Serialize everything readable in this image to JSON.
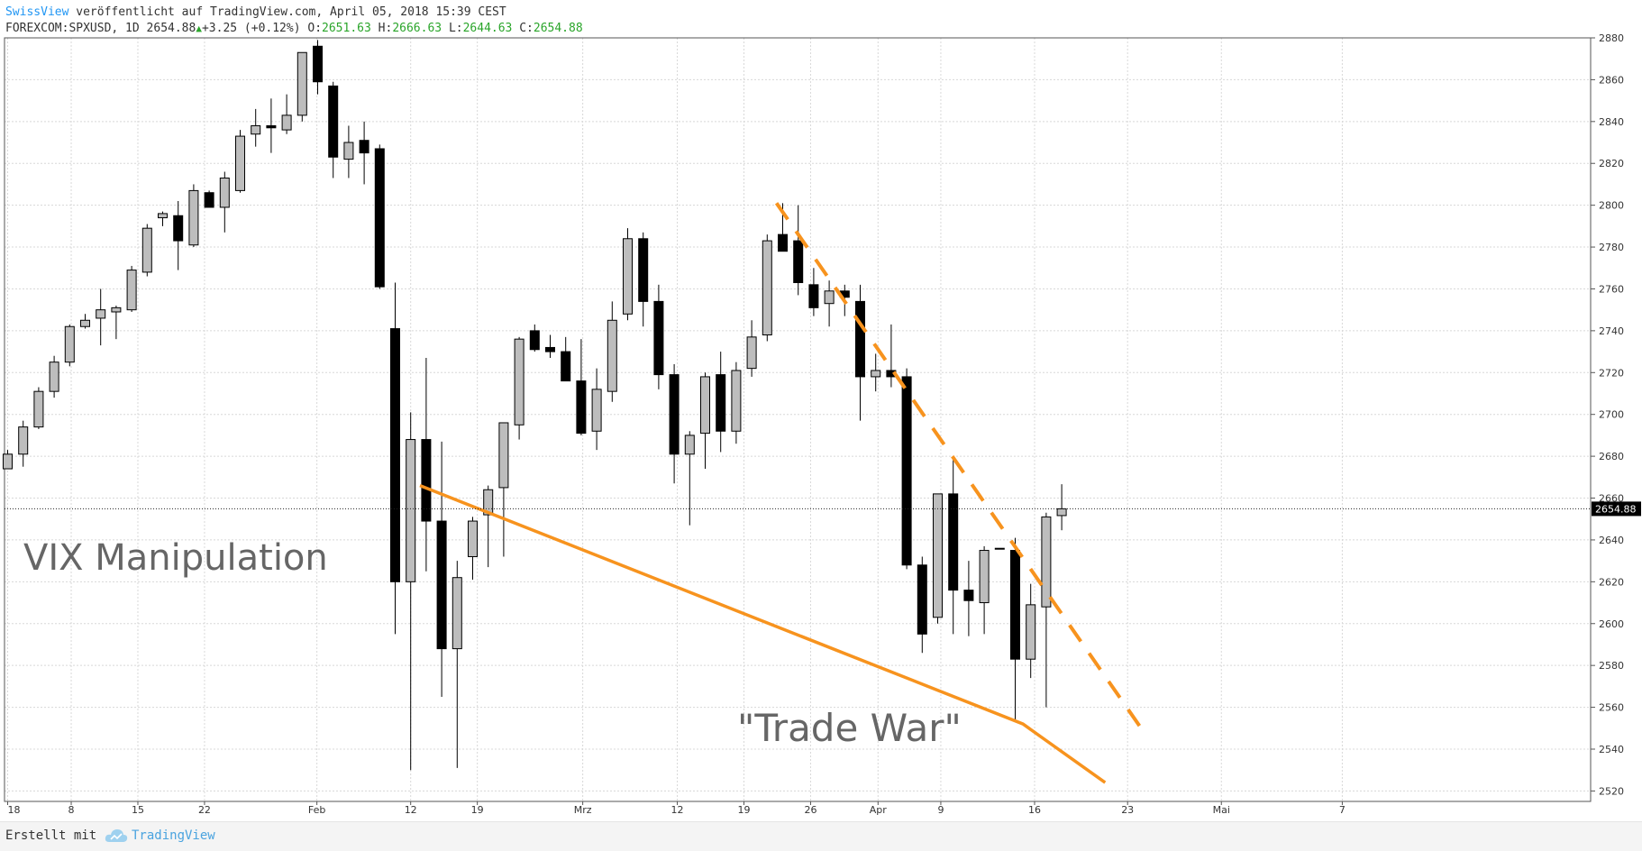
{
  "header": {
    "author": "SwissView",
    "published_text": " veröffentlicht auf TradingView.com, April 05, 2018 15:39 CEST",
    "symbol": "FOREXCOM:SPXUSD, 1D",
    "last": "2654.88",
    "change": "+3.25 (+0.12%)",
    "o_label": "O:",
    "o_value": "2651.63",
    "h_label": "H:",
    "h_value": "2666.63",
    "l_label": "L:",
    "l_value": "2644.63",
    "c_label": "C:",
    "c_value": "2654.88"
  },
  "footer": {
    "created_with": "Erstellt mit",
    "brand": "TradingView"
  },
  "colors": {
    "up_body": "#bdbdbd",
    "down_body": "#000000",
    "trend": "#f7931e",
    "accent": "#2196f3",
    "grid": "#d8d8d8"
  },
  "chart_data": {
    "type": "candlestick",
    "symbol": "FOREXCOM:SPXUSD",
    "interval": "1D",
    "ylim": [
      2515,
      2880
    ],
    "y_ticks": [
      2520,
      2540,
      2560,
      2580,
      2600,
      2620,
      2640,
      2660,
      2680,
      2700,
      2720,
      2740,
      2760,
      2780,
      2800,
      2820,
      2840,
      2860,
      2880
    ],
    "x_ticks": [
      "18",
      "8",
      "15",
      "22",
      "Feb",
      "12",
      "19",
      "Mrz",
      "12",
      "19",
      "26",
      "Apr",
      "9",
      "16",
      "23",
      "Mai",
      "7"
    ],
    "last_price_label": "2654.88",
    "last_price": 2654.88,
    "candles": [
      {
        "o": 2674,
        "h": 2683,
        "l": 2674,
        "c": 2681
      },
      {
        "o": 2681,
        "h": 2697,
        "l": 2675,
        "c": 2694
      },
      {
        "o": 2694,
        "h": 2713,
        "l": 2693,
        "c": 2711
      },
      {
        "o": 2711,
        "h": 2728,
        "l": 2708,
        "c": 2725
      },
      {
        "o": 2725,
        "h": 2743,
        "l": 2723,
        "c": 2742
      },
      {
        "o": 2742,
        "h": 2748,
        "l": 2741,
        "c": 2745
      },
      {
        "o": 2746,
        "h": 2760,
        "l": 2733,
        "c": 2750
      },
      {
        "o": 2749,
        "h": 2752,
        "l": 2736,
        "c": 2751
      },
      {
        "o": 2750,
        "h": 2771,
        "l": 2749,
        "c": 2769
      },
      {
        "o": 2768,
        "h": 2791,
        "l": 2766,
        "c": 2789
      },
      {
        "o": 2794,
        "h": 2797,
        "l": 2790,
        "c": 2796
      },
      {
        "o": 2795,
        "h": 2802,
        "l": 2769,
        "c": 2783
      },
      {
        "o": 2781,
        "h": 2810,
        "l": 2780,
        "c": 2807
      },
      {
        "o": 2806,
        "h": 2807,
        "l": 2799,
        "c": 2799
      },
      {
        "o": 2799,
        "h": 2816,
        "l": 2787,
        "c": 2813
      },
      {
        "o": 2807,
        "h": 2836,
        "l": 2806,
        "c": 2833
      },
      {
        "o": 2834,
        "h": 2846,
        "l": 2828,
        "c": 2838
      },
      {
        "o": 2838,
        "h": 2851,
        "l": 2825,
        "c": 2837
      },
      {
        "o": 2836,
        "h": 2853,
        "l": 2834,
        "c": 2843
      },
      {
        "o": 2843,
        "h": 2873,
        "l": 2840,
        "c": 2873
      },
      {
        "o": 2876,
        "h": 2879,
        "l": 2853,
        "c": 2859
      },
      {
        "o": 2857,
        "h": 2859,
        "l": 2813,
        "c": 2823
      },
      {
        "o": 2822,
        "h": 2838,
        "l": 2813,
        "c": 2830
      },
      {
        "o": 2831,
        "h": 2840,
        "l": 2810,
        "c": 2825
      },
      {
        "o": 2827,
        "h": 2829,
        "l": 2760,
        "c": 2761
      },
      {
        "o": 2741,
        "h": 2763,
        "l": 2595,
        "c": 2620
      },
      {
        "o": 2620,
        "h": 2701,
        "l": 2530,
        "c": 2688
      },
      {
        "o": 2688,
        "h": 2727,
        "l": 2625,
        "c": 2649
      },
      {
        "o": 2649,
        "h": 2687,
        "l": 2565,
        "c": 2588
      },
      {
        "o": 2588,
        "h": 2630,
        "l": 2531,
        "c": 2622
      },
      {
        "o": 2632,
        "h": 2651,
        "l": 2621,
        "c": 2649
      },
      {
        "o": 2652,
        "h": 2666,
        "l": 2627,
        "c": 2664
      },
      {
        "o": 2665,
        "h": 2693,
        "l": 2632,
        "c": 2696
      },
      {
        "o": 2695,
        "h": 2737,
        "l": 2688,
        "c": 2736
      },
      {
        "o": 2740,
        "h": 2743,
        "l": 2730,
        "c": 2731
      },
      {
        "o": 2732,
        "h": 2738,
        "l": 2727,
        "c": 2730
      },
      {
        "o": 2730,
        "h": 2737,
        "l": 2718,
        "c": 2716
      },
      {
        "o": 2716,
        "h": 2736,
        "l": 2690,
        "c": 2691
      },
      {
        "o": 2692,
        "h": 2722,
        "l": 2683,
        "c": 2712
      },
      {
        "o": 2711,
        "h": 2754,
        "l": 2706,
        "c": 2745
      },
      {
        "o": 2748,
        "h": 2789,
        "l": 2745,
        "c": 2784
      },
      {
        "o": 2784,
        "h": 2787,
        "l": 2742,
        "c": 2754
      },
      {
        "o": 2754,
        "h": 2762,
        "l": 2712,
        "c": 2719
      },
      {
        "o": 2719,
        "h": 2724,
        "l": 2667,
        "c": 2681
      },
      {
        "o": 2681,
        "h": 2692,
        "l": 2647,
        "c": 2690
      },
      {
        "o": 2691,
        "h": 2720,
        "l": 2674,
        "c": 2718
      },
      {
        "o": 2719,
        "h": 2730,
        "l": 2682,
        "c": 2692
      },
      {
        "o": 2692,
        "h": 2725,
        "l": 2686,
        "c": 2721
      },
      {
        "o": 2722,
        "h": 2745,
        "l": 2718,
        "c": 2737
      },
      {
        "o": 2738,
        "h": 2786,
        "l": 2735,
        "c": 2783
      },
      {
        "o": 2786,
        "h": 2801,
        "l": 2780,
        "c": 2778
      },
      {
        "o": 2783,
        "h": 2800,
        "l": 2757,
        "c": 2763
      },
      {
        "o": 2762,
        "h": 2770,
        "l": 2747,
        "c": 2751
      },
      {
        "o": 2753,
        "h": 2764,
        "l": 2742,
        "c": 2759
      },
      {
        "o": 2759,
        "h": 2762,
        "l": 2747,
        "c": 2756
      },
      {
        "o": 2754,
        "h": 2762,
        "l": 2697,
        "c": 2718
      },
      {
        "o": 2718,
        "h": 2729,
        "l": 2711,
        "c": 2721
      },
      {
        "o": 2721,
        "h": 2743,
        "l": 2713,
        "c": 2718
      },
      {
        "o": 2718,
        "h": 2722,
        "l": 2626,
        "c": 2628
      },
      {
        "o": 2628,
        "h": 2632,
        "l": 2586,
        "c": 2595
      },
      {
        "o": 2603,
        "h": 2662,
        "l": 2600,
        "c": 2662
      },
      {
        "o": 2662,
        "h": 2680,
        "l": 2595,
        "c": 2616
      },
      {
        "o": 2616,
        "h": 2630,
        "l": 2594,
        "c": 2611
      },
      {
        "o": 2610,
        "h": 2637,
        "l": 2595,
        "c": 2635
      },
      {
        "o": 2636,
        "h": 2636,
        "l": 2636,
        "c": 2636
      },
      {
        "o": 2635,
        "h": 2641,
        "l": 2553,
        "c": 2583
      },
      {
        "o": 2583,
        "h": 2619,
        "l": 2574,
        "c": 2609
      },
      {
        "o": 2608,
        "h": 2653,
        "l": 2560,
        "c": 2651
      },
      {
        "o": 2651.63,
        "h": 2666.63,
        "l": 2644.63,
        "c": 2654.88
      }
    ],
    "trend_lines": [
      {
        "style": "solid",
        "points": [
          [
            26.6,
            2666
          ],
          [
            65.5,
            2552
          ],
          [
            70.8,
            2524
          ]
        ]
      },
      {
        "style": "dashed",
        "points": [
          [
            49.6,
            2801
          ],
          [
            73.5,
            2546
          ]
        ]
      }
    ],
    "annotations": [
      {
        "text": "VIX Manipulation"
      },
      {
        "text": "\"Trade War\""
      }
    ]
  }
}
